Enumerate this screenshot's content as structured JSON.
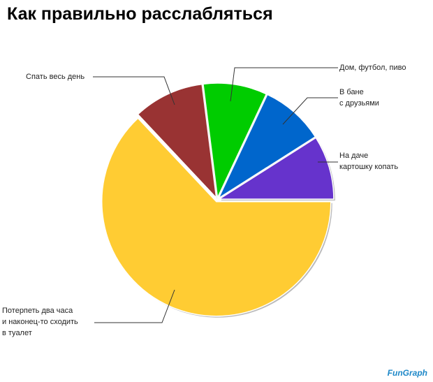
{
  "chart_data": {
    "type": "pie",
    "title": "Как правильно расслабляться",
    "categories": [
      "На даче\nкартошку копать",
      "В бане\nс друзьями",
      "Дом, футбол, пиво",
      "Спать весь день",
      "Потерпеть два часа\nи наконец-то сходить\nв туалет"
    ],
    "values": [
      9,
      9,
      9,
      10,
      63
    ],
    "colors": [
      "#6633cc",
      "#0066cc",
      "#00cc00",
      "#993333",
      "#ffcc33"
    ]
  },
  "watermark": "FunGraph"
}
